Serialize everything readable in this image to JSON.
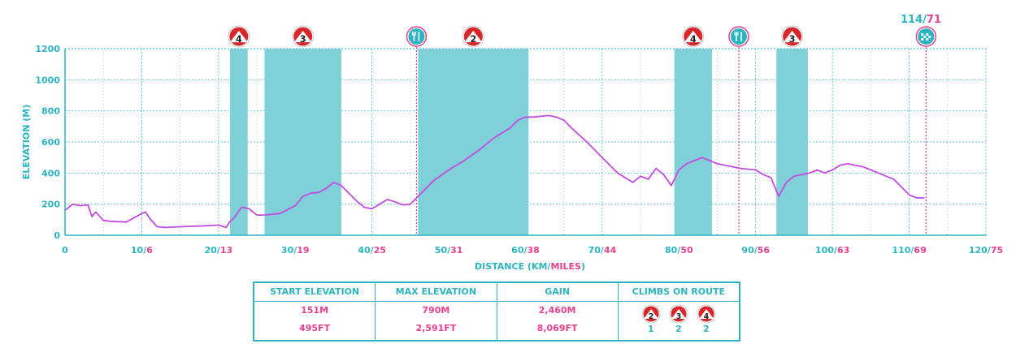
{
  "chart_data": {
    "type": "line",
    "title": "",
    "xlabel_parts": [
      "DISTANCE (KM/",
      "MILES",
      ")"
    ],
    "ylabel": "ELEVATION (M)",
    "xlim": [
      0,
      120
    ],
    "ylim": [
      0,
      1200
    ],
    "x_ticks": [
      {
        "km": "0",
        "mi": ""
      },
      {
        "km": "10",
        "mi": "6"
      },
      {
        "km": "20",
        "mi": "13"
      },
      {
        "km": "30",
        "mi": "19"
      },
      {
        "km": "40",
        "mi": "25"
      },
      {
        "km": "50",
        "mi": "31"
      },
      {
        "km": "60",
        "mi": "38"
      },
      {
        "km": "70",
        "mi": "44"
      },
      {
        "km": "80",
        "mi": "50"
      },
      {
        "km": "90",
        "mi": "56"
      },
      {
        "km": "100",
        "mi": "63"
      },
      {
        "km": "110",
        "mi": "69"
      },
      {
        "km": "120",
        "mi": "75"
      }
    ],
    "y_ticks": [
      0,
      200,
      400,
      600,
      800,
      1000,
      1200
    ],
    "series": [
      {
        "name": "",
        "x": [
          0,
          1,
          2,
          3,
          3.5,
          4,
          5,
          6,
          8,
          10,
          10.5,
          11,
          12,
          13,
          15,
          18,
          20,
          21,
          21.5,
          22,
          23,
          24,
          25,
          26,
          28,
          30,
          31,
          32,
          33,
          34,
          35,
          36,
          37,
          38,
          39,
          40,
          41,
          42,
          43,
          44,
          45,
          46,
          47,
          48,
          50,
          52,
          54,
          56,
          58,
          59,
          60,
          61,
          63,
          64,
          65,
          66,
          68,
          70,
          72,
          74,
          75,
          76,
          77,
          78,
          79,
          80,
          81,
          82,
          83,
          84,
          85,
          86,
          88,
          90,
          91,
          92,
          93,
          94,
          95,
          96,
          97,
          98,
          99,
          100,
          101,
          102,
          103,
          104,
          105,
          106,
          107,
          108,
          109,
          110,
          111,
          112
        ],
        "y": [
          160,
          200,
          190,
          195,
          120,
          150,
          95,
          90,
          85,
          140,
          150,
          110,
          55,
          50,
          55,
          60,
          65,
          50,
          90,
          110,
          180,
          170,
          130,
          130,
          140,
          190,
          250,
          270,
          275,
          300,
          340,
          320,
          270,
          220,
          180,
          170,
          200,
          230,
          215,
          195,
          200,
          250,
          300,
          350,
          420,
          480,
          550,
          630,
          690,
          740,
          760,
          760,
          770,
          760,
          740,
          690,
          600,
          500,
          400,
          340,
          380,
          360,
          430,
          390,
          320,
          420,
          460,
          480,
          500,
          480,
          460,
          450,
          430,
          420,
          390,
          370,
          250,
          340,
          380,
          390,
          400,
          420,
          400,
          420,
          450,
          460,
          450,
          440,
          420,
          400,
          380,
          360,
          310,
          260,
          240,
          240
        ]
      }
    ],
    "climb_zones": [
      {
        "start": 21.5,
        "end": 23.8,
        "category": "4"
      },
      {
        "start": 26.0,
        "end": 36.0,
        "category": "3"
      },
      {
        "start": 46.0,
        "end": 60.4,
        "category": "2"
      },
      {
        "start": 79.4,
        "end": 84.3,
        "category": "4"
      },
      {
        "start": 92.7,
        "end": 96.8,
        "category": "3"
      }
    ],
    "markers": [
      {
        "type": "food",
        "x": 45.8
      },
      {
        "type": "food",
        "x": 87.8
      },
      {
        "type": "finish",
        "x": 112.2
      }
    ],
    "finish_label": {
      "km": "114",
      "sep": "/",
      "mi": "71"
    }
  },
  "stats": {
    "start_elevation": {
      "label": "START ELEVATION",
      "m": "151M",
      "ft": "495FT"
    },
    "max_elevation": {
      "label": "MAX ELEVATION",
      "m": "790M",
      "ft": "2,591FT"
    },
    "gain": {
      "label": "GAIN",
      "m": "2,460M",
      "ft": "8,069FT"
    },
    "climbs": {
      "label": "CLIMBS ON ROUTE",
      "items": [
        {
          "category": "2",
          "count": "1"
        },
        {
          "category": "3",
          "count": "2"
        },
        {
          "category": "4",
          "count": "2"
        }
      ]
    }
  },
  "colors": {
    "teal": "#2bb5c3",
    "zone": "#7fd0d9",
    "pink": "#e8428e",
    "line": "#c44be0",
    "icon_red": "#d9262a"
  }
}
